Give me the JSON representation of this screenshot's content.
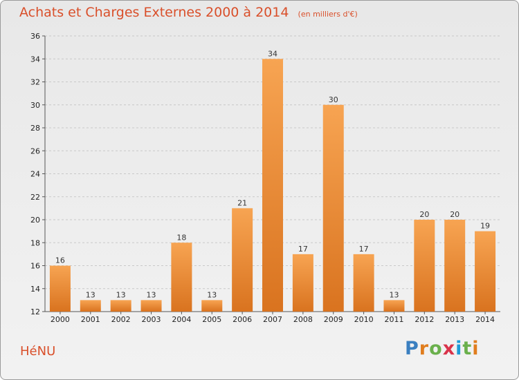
{
  "header": {
    "title": "Achats et Charges Externes 2000 à 2014",
    "unit": "(en milliers d'€)"
  },
  "footer": {
    "place": "HéNU",
    "logo_text": "Proxiti"
  },
  "colors": {
    "accent": "#d94f2a",
    "bar_top": "#f7a452",
    "bar_bottom": "#d9731f",
    "grid": "#c8c8c8"
  },
  "chart_data": {
    "type": "bar",
    "categories": [
      "2000",
      "2001",
      "2002",
      "2003",
      "2004",
      "2005",
      "2006",
      "2007",
      "2008",
      "2009",
      "2010",
      "2011",
      "2012",
      "2013",
      "2014"
    ],
    "values": [
      16,
      13,
      13,
      13,
      18,
      13,
      21,
      34,
      17,
      30,
      17,
      13,
      20,
      20,
      19
    ],
    "ylim": [
      12,
      36
    ],
    "yticks": [
      12,
      14,
      16,
      18,
      20,
      22,
      24,
      26,
      28,
      30,
      32,
      34,
      36
    ],
    "grid": true,
    "legend": "none"
  }
}
